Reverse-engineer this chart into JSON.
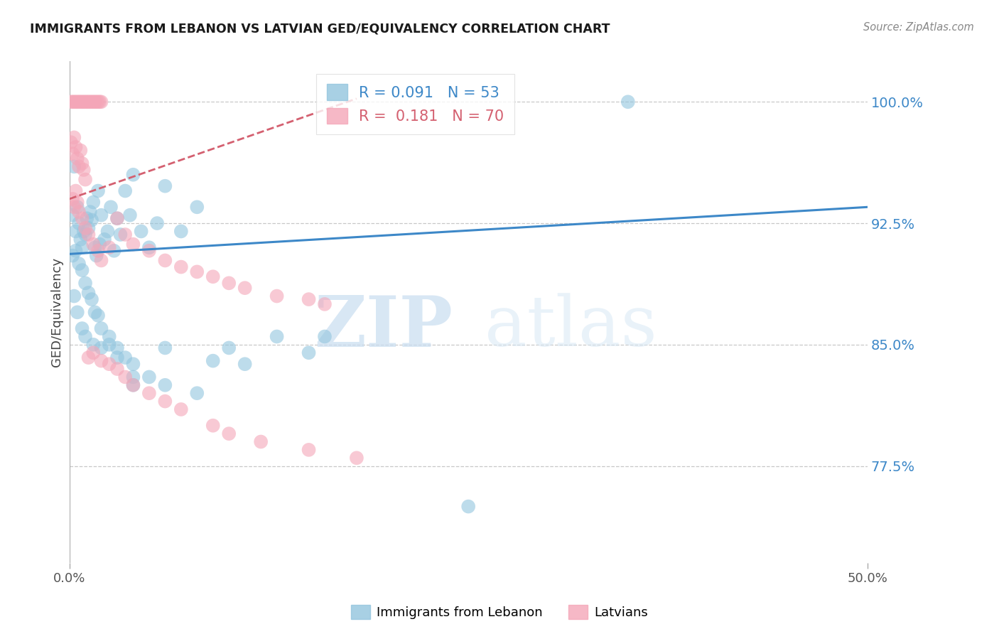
{
  "title": "IMMIGRANTS FROM LEBANON VS LATVIAN GED/EQUIVALENCY CORRELATION CHART",
  "source": "Source: ZipAtlas.com",
  "ylabel": "GED/Equivalency",
  "ytick_labels": [
    "100.0%",
    "92.5%",
    "85.0%",
    "77.5%"
  ],
  "ytick_values": [
    1.0,
    0.925,
    0.85,
    0.775
  ],
  "xmin": 0.0,
  "xmax": 0.5,
  "ymin": 0.715,
  "ymax": 1.025,
  "legend_r1": "0.091",
  "legend_n1": "53",
  "legend_r2": "0.181",
  "legend_n2": "70",
  "color_blue": "#92c5de",
  "color_pink": "#f4a6b8",
  "color_line_blue": "#3d88c8",
  "color_line_pink": "#d46070",
  "watermark_zip": "ZIP",
  "watermark_atlas": "atlas",
  "blue_x": [
    0.002,
    0.003,
    0.004,
    0.005,
    0.006,
    0.007,
    0.008,
    0.009,
    0.01,
    0.011,
    0.012,
    0.013,
    0.014,
    0.015,
    0.016,
    0.017,
    0.018,
    0.019,
    0.02,
    0.022,
    0.024,
    0.026,
    0.028,
    0.03,
    0.032,
    0.035,
    0.038,
    0.04,
    0.045,
    0.05,
    0.055,
    0.06,
    0.07,
    0.08,
    0.09,
    0.1,
    0.11,
    0.13,
    0.15,
    0.16,
    0.003,
    0.005,
    0.008,
    0.01,
    0.015,
    0.02,
    0.025,
    0.03,
    0.04,
    0.06,
    0.35,
    0.04,
    0.25
  ],
  "blue_y": [
    0.93,
    0.96,
    0.92,
    0.935,
    0.925,
    0.915,
    0.91,
    0.92,
    0.918,
    0.928,
    0.922,
    0.932,
    0.927,
    0.938,
    0.91,
    0.905,
    0.945,
    0.912,
    0.93,
    0.915,
    0.92,
    0.935,
    0.908,
    0.928,
    0.918,
    0.945,
    0.93,
    0.955,
    0.92,
    0.91,
    0.925,
    0.948,
    0.92,
    0.935,
    0.84,
    0.848,
    0.838,
    0.855,
    0.845,
    0.855,
    0.88,
    0.87,
    0.86,
    0.855,
    0.85,
    0.848,
    0.85,
    0.842,
    0.83,
    0.848,
    1.0,
    0.825,
    0.75
  ],
  "blue_y2": [
    0.905,
    0.908,
    0.9,
    0.896,
    0.888,
    0.882,
    0.878,
    0.87,
    0.868,
    0.86,
    0.855,
    0.848,
    0.842,
    0.838,
    0.83,
    0.825,
    0.82
  ],
  "blue_x2": [
    0.002,
    0.004,
    0.006,
    0.008,
    0.01,
    0.012,
    0.014,
    0.016,
    0.018,
    0.02,
    0.025,
    0.03,
    0.035,
    0.04,
    0.05,
    0.06,
    0.08
  ],
  "pink_x": [
    0.001,
    0.002,
    0.003,
    0.004,
    0.005,
    0.006,
    0.007,
    0.008,
    0.009,
    0.01,
    0.011,
    0.012,
    0.013,
    0.014,
    0.015,
    0.016,
    0.017,
    0.018,
    0.019,
    0.02,
    0.001,
    0.002,
    0.003,
    0.004,
    0.005,
    0.006,
    0.007,
    0.008,
    0.009,
    0.01,
    0.002,
    0.003,
    0.004,
    0.005,
    0.006,
    0.008,
    0.01,
    0.012,
    0.015,
    0.018,
    0.02,
    0.025,
    0.03,
    0.035,
    0.04,
    0.05,
    0.06,
    0.07,
    0.08,
    0.09,
    0.1,
    0.11,
    0.13,
    0.15,
    0.16,
    0.012,
    0.015,
    0.02,
    0.025,
    0.03,
    0.035,
    0.04,
    0.05,
    0.06,
    0.07,
    0.09,
    0.1,
    0.12,
    0.15,
    0.18
  ],
  "pink_y": [
    1.0,
    1.0,
    1.0,
    1.0,
    1.0,
    1.0,
    1.0,
    1.0,
    1.0,
    1.0,
    1.0,
    1.0,
    1.0,
    1.0,
    1.0,
    1.0,
    1.0,
    1.0,
    1.0,
    1.0,
    0.975,
    0.968,
    0.978,
    0.972,
    0.965,
    0.96,
    0.97,
    0.962,
    0.958,
    0.952,
    0.94,
    0.935,
    0.945,
    0.938,
    0.932,
    0.928,
    0.922,
    0.918,
    0.912,
    0.908,
    0.902,
    0.91,
    0.928,
    0.918,
    0.912,
    0.908,
    0.902,
    0.898,
    0.895,
    0.892,
    0.888,
    0.885,
    0.88,
    0.878,
    0.875,
    0.842,
    0.845,
    0.84,
    0.838,
    0.835,
    0.83,
    0.825,
    0.82,
    0.815,
    0.81,
    0.8,
    0.795,
    0.79,
    0.785,
    0.78
  ],
  "blue_line_x": [
    0.0,
    0.5
  ],
  "blue_line_y": [
    0.906,
    0.935
  ],
  "pink_line_x": [
    0.0,
    0.18
  ],
  "pink_line_y": [
    0.94,
    1.002
  ]
}
